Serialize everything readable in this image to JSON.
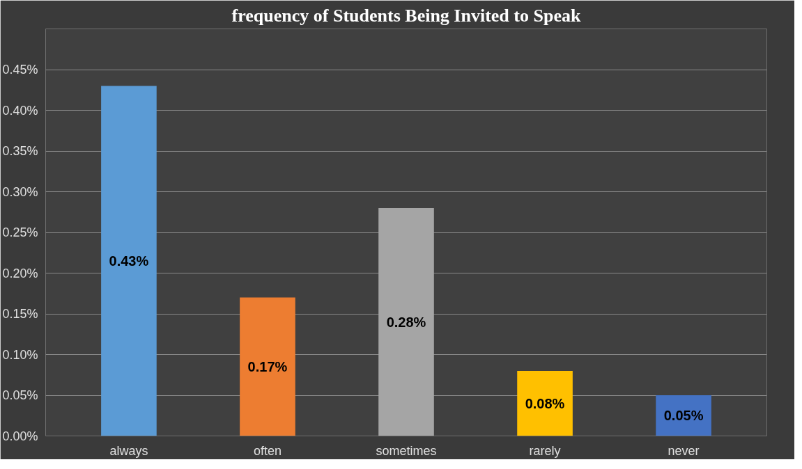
{
  "chart_data": {
    "type": "bar",
    "title": "frequency of Students Being Invited to Speak",
    "categories": [
      "always",
      "often",
      "sometimes",
      "rarely",
      "never"
    ],
    "values": [
      0.43,
      0.17,
      0.28,
      0.08,
      0.05
    ],
    "colors": [
      "#5b9bd5",
      "#ed7d31",
      "#a5a5a5",
      "#ffc000",
      "#4472c4"
    ],
    "value_labels": [
      "0.43%",
      "0.17%",
      "0.28%",
      "0.08%",
      "0.05%"
    ],
    "ylim": [
      0,
      0.5
    ],
    "yticks": [
      {
        "value": 0,
        "label": "0.00%"
      },
      {
        "value": 0.05,
        "label": "0.05%"
      },
      {
        "value": 0.1,
        "label": "0.10%"
      },
      {
        "value": 0.15,
        "label": "0.15%"
      },
      {
        "value": 0.2,
        "label": "0.20%"
      },
      {
        "value": 0.25,
        "label": "0.25%"
      },
      {
        "value": 0.3,
        "label": "0.30%"
      },
      {
        "value": 0.35,
        "label": "0.35%"
      },
      {
        "value": 0.4,
        "label": "0.40%"
      },
      {
        "value": 0.45,
        "label": "0.45%"
      },
      {
        "value": 0.5,
        "label": null
      }
    ],
    "grid": "y"
  }
}
